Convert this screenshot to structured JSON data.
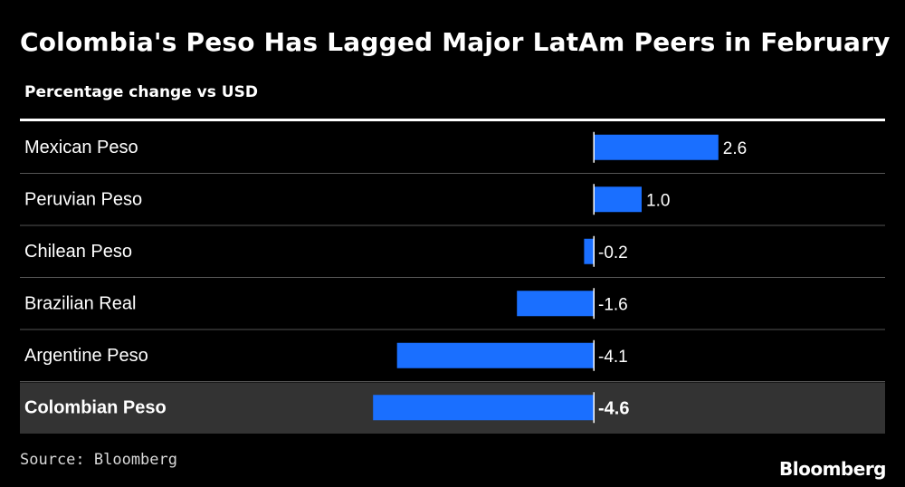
{
  "header": {
    "title": "Colombia's Peso Has Lagged Major LatAm Peers in February",
    "subtitle": "Percentage change vs USD"
  },
  "footer": {
    "source": "Source: Bloomberg",
    "brand": "Bloomberg"
  },
  "colors": {
    "background": "#000000",
    "bar": "#1a6fff",
    "highlight_row": "#333333",
    "text": "#ffffff",
    "divider": "#555555"
  },
  "chart_data": {
    "type": "bar",
    "orientation": "horizontal",
    "title": "Colombia's Peso Has Lagged Major LatAm Peers in February",
    "subtitle": "Percentage change vs USD",
    "categories": [
      "Mexican Peso",
      "Peruvian Peso",
      "Chilean Peso",
      "Brazilian Real",
      "Argentine Peso",
      "Colombian Peso"
    ],
    "values": [
      2.6,
      1.0,
      -0.2,
      -1.6,
      -4.1,
      -4.6
    ],
    "value_labels": [
      "2.6",
      "1.0",
      "-0.2",
      "-1.6",
      "-4.1",
      "-4.6"
    ],
    "highlighted_category": "Colombian Peso",
    "xlim": [
      -4.6,
      2.6
    ],
    "grid": false,
    "legend": "none"
  }
}
